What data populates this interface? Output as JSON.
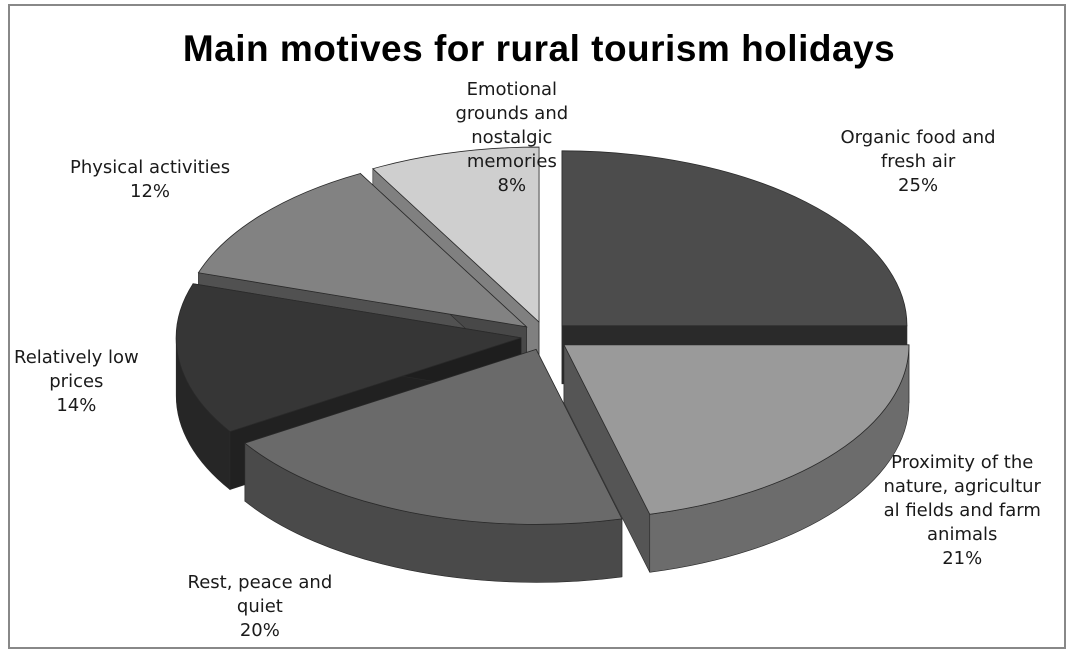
{
  "chart_data": {
    "type": "pie",
    "title": "Main motives for rural tourism holidays",
    "exploded": true,
    "three_d": true,
    "slices": [
      {
        "label": "Organic food and fresh air",
        "label_lines": [
          "Organic food and",
          "fresh air"
        ],
        "value": 25,
        "value_label": "25%",
        "color": "#4c4c4c"
      },
      {
        "label": "Proximity of the nature, agricultural fields and farm animals",
        "label_lines": [
          "Proximity of the",
          "nature, agricultur",
          "al fields and farm",
          "animals"
        ],
        "value": 21,
        "value_label": "21%",
        "color": "#9a9a9a"
      },
      {
        "label": "Rest, peace and quiet",
        "label_lines": [
          "Rest, peace and",
          "quiet"
        ],
        "value": 20,
        "value_label": "20%",
        "color": "#6a6a6a"
      },
      {
        "label": "Relatively low prices",
        "label_lines": [
          "Relatively low",
          "prices"
        ],
        "value": 14,
        "value_label": "14%",
        "color": "#363636"
      },
      {
        "label": "Physical activities",
        "label_lines": [
          "Physical activities"
        ],
        "value": 12,
        "value_label": "12%",
        "color": "#828282"
      },
      {
        "label": "Emotional grounds and nostalgic memories",
        "label_lines": [
          "Emotional",
          "grounds and",
          "nostalgic",
          "memories"
        ],
        "value": 8,
        "value_label": "8%",
        "color": "#cfcfcf"
      }
    ]
  }
}
